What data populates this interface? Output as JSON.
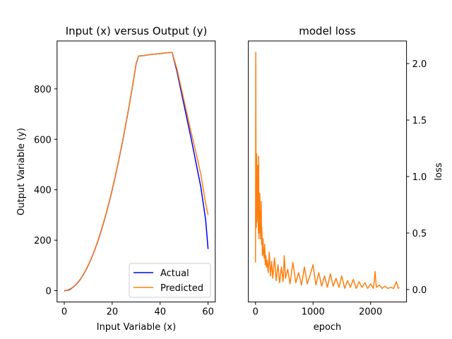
{
  "chart_data": [
    {
      "type": "line",
      "title": "Input (x) versus Output (y)",
      "xlabel": "Input Variable (x)",
      "ylabel": "Output Variable (y)",
      "xlim": [
        -3,
        63
      ],
      "ylim": [
        -45,
        990
      ],
      "xticks": [
        0,
        20,
        40,
        60
      ],
      "yticks": [
        0,
        200,
        400,
        600,
        800
      ],
      "legend": {
        "position": "bottom-right",
        "entries": [
          "Actual",
          "Predicted"
        ]
      },
      "series": [
        {
          "name": "Actual",
          "color": "#0000ff",
          "x": [
            0,
            1,
            2,
            3,
            4,
            5,
            6,
            7,
            8,
            9,
            10,
            11,
            12,
            13,
            14,
            15,
            16,
            17,
            18,
            19,
            20,
            21,
            22,
            23,
            24,
            25,
            26,
            27,
            28,
            29,
            30,
            31,
            33,
            35,
            37,
            39,
            41,
            43,
            45,
            47,
            49,
            51,
            53,
            55,
            57,
            59,
            60
          ],
          "y": [
            0,
            1,
            3,
            9,
            16,
            25,
            36,
            49,
            64,
            81,
            100,
            121,
            144,
            169,
            196,
            225,
            256,
            289,
            324,
            361,
            400,
            441,
            484,
            529,
            576,
            625,
            676,
            729,
            784,
            841,
            900,
            930,
            932,
            935,
            937,
            939,
            941,
            943,
            945,
            870,
            780,
            690,
            600,
            505,
            410,
            280,
            165
          ]
        },
        {
          "name": "Predicted",
          "color": "#ff7f0e",
          "x": [
            0,
            1,
            2,
            3,
            4,
            5,
            6,
            7,
            8,
            9,
            10,
            11,
            12,
            13,
            14,
            15,
            16,
            17,
            18,
            19,
            20,
            21,
            22,
            23,
            24,
            25,
            26,
            27,
            28,
            29,
            30,
            31,
            33,
            35,
            37,
            39,
            41,
            43,
            45,
            47,
            49,
            51,
            53,
            55,
            57,
            59,
            60
          ],
          "y": [
            -2,
            1,
            5,
            10,
            17,
            26,
            37,
            50,
            65,
            82,
            101,
            122,
            145,
            170,
            198,
            227,
            258,
            291,
            326,
            363,
            402,
            443,
            486,
            531,
            578,
            627,
            678,
            731,
            786,
            843,
            902,
            930,
            932,
            935,
            937,
            939,
            941,
            943,
            945,
            880,
            795,
            710,
            625,
            545,
            460,
            345,
            300
          ]
        }
      ]
    },
    {
      "type": "line",
      "title": "model loss",
      "xlabel": "epoch",
      "ylabel": "loss",
      "xlim": [
        -125,
        2625
      ],
      "ylim": [
        -0.11,
        2.2
      ],
      "xticks": [
        0,
        1000,
        2000
      ],
      "yticks": [
        0.0,
        0.5,
        1.0,
        1.5,
        2.0
      ],
      "y_axis_side": "right",
      "series": [
        {
          "name": "loss",
          "color": "#ff7f0e",
          "epochs": 2500,
          "x": [
            0,
            5,
            10,
            15,
            20,
            25,
            30,
            35,
            40,
            45,
            50,
            55,
            60,
            65,
            70,
            75,
            80,
            85,
            90,
            95,
            100,
            105,
            110,
            120,
            130,
            140,
            150,
            160,
            170,
            180,
            190,
            200,
            220,
            240,
            260,
            280,
            300,
            330,
            360,
            390,
            420,
            450,
            480,
            500,
            520,
            560,
            600,
            650,
            700,
            750,
            800,
            850,
            900,
            950,
            1000,
            1050,
            1100,
            1150,
            1200,
            1250,
            1300,
            1350,
            1400,
            1450,
            1500,
            1550,
            1600,
            1650,
            1700,
            1750,
            1800,
            1850,
            1900,
            1950,
            2000,
            2050,
            2080,
            2100,
            2150,
            2200,
            2250,
            2300,
            2350,
            2400,
            2450,
            2480,
            2500
          ],
          "y": [
            0.24,
            2.1,
            0.8,
            0.55,
            1.2,
            0.6,
            0.9,
            0.7,
            1.1,
            0.65,
            0.5,
            1.18,
            0.45,
            0.75,
            0.6,
            0.85,
            0.5,
            0.7,
            0.45,
            0.6,
            0.78,
            0.4,
            0.55,
            0.3,
            0.45,
            0.32,
            0.28,
            0.4,
            0.22,
            0.3,
            0.2,
            0.26,
            0.15,
            0.33,
            0.12,
            0.25,
            0.1,
            0.28,
            0.08,
            0.22,
            0.06,
            0.2,
            0.07,
            0.3,
            0.1,
            0.18,
            0.05,
            0.24,
            0.06,
            0.15,
            0.04,
            0.2,
            0.05,
            0.13,
            0.22,
            0.04,
            0.15,
            0.03,
            0.12,
            0.02,
            0.14,
            0.03,
            0.1,
            0.02,
            0.12,
            0.01,
            0.08,
            0.02,
            0.09,
            0.01,
            0.07,
            0.02,
            0.06,
            0.01,
            0.05,
            0.01,
            0.16,
            0.02,
            0.04,
            0.01,
            0.03,
            0.01,
            0.02,
            0.01,
            0.07,
            0.01,
            0.02
          ]
        }
      ]
    }
  ]
}
